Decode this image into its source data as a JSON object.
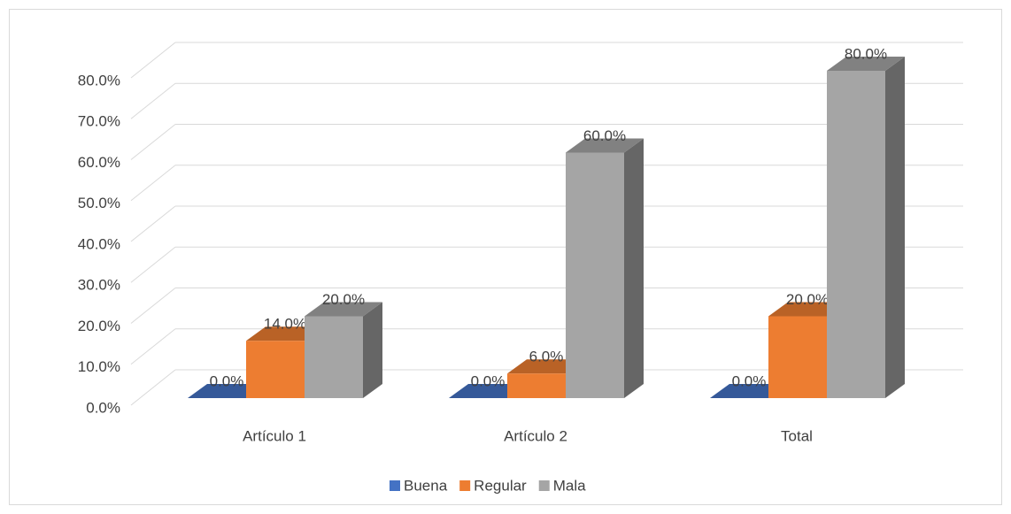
{
  "chart_data": {
    "type": "bar3d",
    "categories": [
      "Artículo 1",
      "Artículo 2",
      "Total"
    ],
    "series": [
      {
        "name": "Buena",
        "color": "#4472c4",
        "values": [
          0,
          0,
          0
        ],
        "value_labels": [
          "0.0%",
          "0.0%",
          "0.0%"
        ]
      },
      {
        "name": "Regular",
        "color": "#ed7d31",
        "values": [
          14,
          6,
          20
        ],
        "value_labels": [
          "14.0%",
          "6.0%",
          "20.0%"
        ]
      },
      {
        "name": "Mala",
        "color": "#a5a5a5",
        "values": [
          20,
          60,
          80
        ],
        "value_labels": [
          "20.0%",
          "60.0%",
          "80.0%"
        ]
      }
    ],
    "ylim": [
      0,
      80
    ],
    "yticks": [
      {
        "value": 0,
        "label": "0.0%"
      },
      {
        "value": 10,
        "label": "10.0%"
      },
      {
        "value": 20,
        "label": "20.0%"
      },
      {
        "value": 30,
        "label": "30.0%"
      },
      {
        "value": 40,
        "label": "40.0%"
      },
      {
        "value": 50,
        "label": "50.0%"
      },
      {
        "value": 60,
        "label": "60.0%"
      },
      {
        "value": 70,
        "label": "70.0%"
      },
      {
        "value": 80,
        "label": "80.0%"
      }
    ],
    "grid": true,
    "legend": "bottom"
  }
}
